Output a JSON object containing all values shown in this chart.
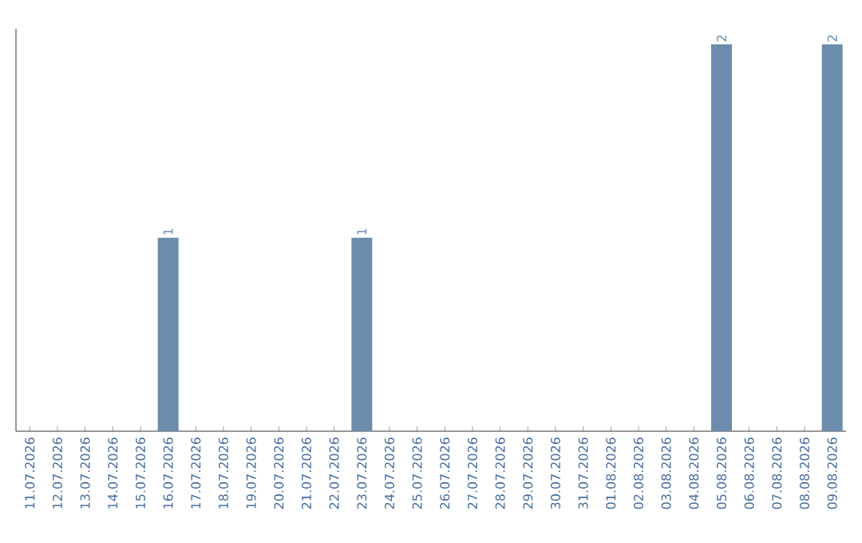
{
  "chart_data": {
    "type": "bar",
    "categories": [
      "11.07.2026",
      "12.07.2026",
      "13.07.2026",
      "14.07.2026",
      "15.07.2026",
      "16.07.2026",
      "17.07.2026",
      "18.07.2026",
      "19.07.2026",
      "20.07.2026",
      "21.07.2026",
      "22.07.2026",
      "23.07.2026",
      "24.07.2026",
      "25.07.2026",
      "26.07.2026",
      "27.07.2026",
      "28.07.2026",
      "29.07.2026",
      "30.07.2026",
      "31.07.2026",
      "01.08.2026",
      "02.08.2026",
      "03.08.2026",
      "04.08.2026",
      "05.08.2026",
      "06.08.2026",
      "07.08.2026",
      "08.08.2026",
      "09.08.2026"
    ],
    "values": [
      0,
      0,
      0,
      0,
      0,
      1,
      0,
      0,
      0,
      0,
      0,
      0,
      1,
      0,
      0,
      0,
      0,
      0,
      0,
      0,
      0,
      0,
      0,
      0,
      0,
      2,
      0,
      0,
      0,
      2
    ],
    "value_labels": [
      null,
      null,
      null,
      null,
      null,
      "1",
      null,
      null,
      null,
      null,
      null,
      null,
      "1",
      null,
      null,
      null,
      null,
      null,
      null,
      null,
      null,
      null,
      null,
      null,
      null,
      "2",
      null,
      null,
      null,
      "2"
    ],
    "color": "#6b8cac",
    "ylim": [
      0,
      2
    ],
    "tick_labels": "x"
  }
}
